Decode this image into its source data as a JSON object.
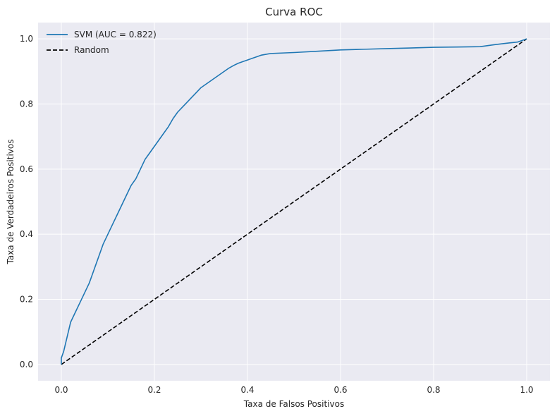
{
  "chart_data": {
    "type": "line",
    "title": "Curva ROC",
    "xlabel": "Taxa de Falsos Positivos",
    "ylabel": "Taxa de Verdadeiros Positivos",
    "xlim": [
      -0.05,
      1.05
    ],
    "ylim": [
      -0.05,
      1.05
    ],
    "xticks": [
      "0.0",
      "0.2",
      "0.4",
      "0.6",
      "0.8",
      "1.0"
    ],
    "yticks": [
      "0.0",
      "0.2",
      "0.4",
      "0.6",
      "0.8",
      "1.0"
    ],
    "grid": true,
    "legend_position": "top-left",
    "series": [
      {
        "name": "SVM (AUC = 0.822)",
        "color": "#1f77b4",
        "style": "solid",
        "x": [
          0.0,
          0.0,
          0.005,
          0.01,
          0.015,
          0.02,
          0.03,
          0.04,
          0.05,
          0.06,
          0.07,
          0.08,
          0.09,
          0.1,
          0.11,
          0.12,
          0.13,
          0.14,
          0.15,
          0.16,
          0.17,
          0.18,
          0.19,
          0.2,
          0.21,
          0.22,
          0.23,
          0.24,
          0.25,
          0.26,
          0.27,
          0.28,
          0.29,
          0.3,
          0.31,
          0.32,
          0.33,
          0.34,
          0.35,
          0.36,
          0.37,
          0.38,
          0.39,
          0.4,
          0.41,
          0.42,
          0.43,
          0.45,
          0.5,
          0.55,
          0.6,
          0.65,
          0.7,
          0.75,
          0.8,
          0.85,
          0.9,
          0.93,
          0.96,
          0.98,
          1.0
        ],
        "y": [
          0.0,
          0.02,
          0.04,
          0.07,
          0.1,
          0.13,
          0.16,
          0.19,
          0.22,
          0.25,
          0.29,
          0.33,
          0.37,
          0.4,
          0.43,
          0.46,
          0.49,
          0.52,
          0.55,
          0.57,
          0.6,
          0.63,
          0.65,
          0.67,
          0.69,
          0.71,
          0.73,
          0.755,
          0.775,
          0.79,
          0.805,
          0.82,
          0.835,
          0.85,
          0.86,
          0.87,
          0.88,
          0.89,
          0.9,
          0.91,
          0.918,
          0.925,
          0.93,
          0.935,
          0.94,
          0.945,
          0.95,
          0.955,
          0.958,
          0.962,
          0.966,
          0.968,
          0.97,
          0.972,
          0.974,
          0.975,
          0.976,
          0.982,
          0.987,
          0.99,
          1.0
        ]
      },
      {
        "name": "Random",
        "color": "#000000",
        "style": "dashed",
        "x": [
          0,
          1
        ],
        "y": [
          0,
          1
        ]
      }
    ]
  }
}
